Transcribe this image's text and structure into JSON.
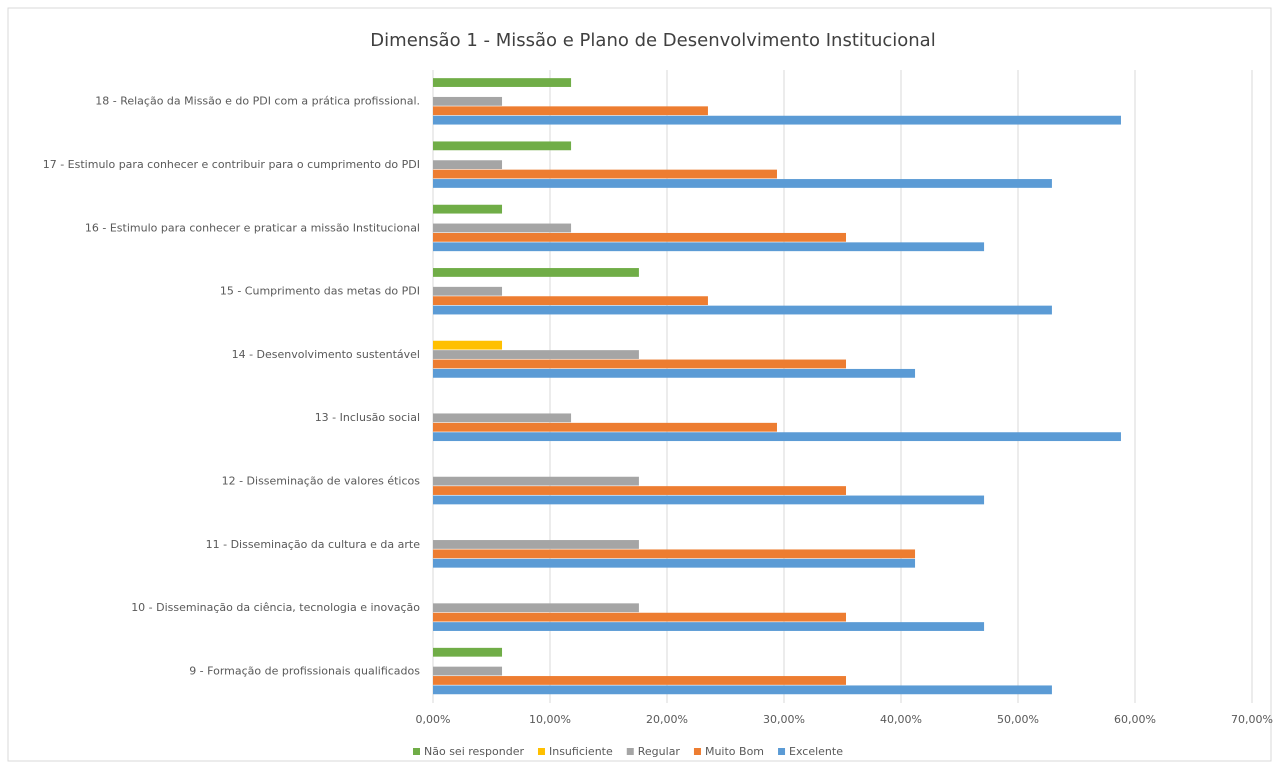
{
  "chart_data": {
    "type": "hbar",
    "title": "Dimensão 1 - Missão e Plano de Desenvolvimento Institucional",
    "categories": [
      "18 - Relação da Missão e do PDI com a prática profissional.",
      "17 - Estimulo para conhecer e contribuir para o cumprimento do PDI",
      "16 - Estimulo para conhecer e praticar a missão Institucional",
      "15 - Cumprimento das metas do PDI",
      "14 - Desenvolvimento sustentável",
      "13 - Inclusão social",
      "12 - Disseminação de valores éticos",
      "11 - Disseminação da cultura e da arte",
      "10 - Disseminação da ciência, tecnologia e inovação",
      "9 - Formação de profissionais qualificados"
    ],
    "series": [
      {
        "name": "Não sei responder",
        "color": "#70ad47",
        "values": [
          11.8,
          11.8,
          5.9,
          17.6,
          0,
          0,
          0,
          0,
          0,
          5.9
        ]
      },
      {
        "name": "Insuficiente",
        "color": "#ffc000",
        "values": [
          0,
          0,
          0,
          0,
          5.9,
          0,
          0,
          0,
          0,
          0
        ]
      },
      {
        "name": "Regular",
        "color": "#a5a5a5",
        "values": [
          5.9,
          5.9,
          11.8,
          5.9,
          17.6,
          11.8,
          17.6,
          17.6,
          17.6,
          5.9
        ]
      },
      {
        "name": "Muito Bom",
        "color": "#ed7d31",
        "values": [
          23.5,
          29.4,
          35.3,
          23.5,
          35.3,
          29.4,
          35.3,
          41.2,
          35.3,
          35.3
        ]
      },
      {
        "name": "Excelente",
        "color": "#5b9bd5",
        "values": [
          58.8,
          52.9,
          47.1,
          52.9,
          41.2,
          58.8,
          47.1,
          41.2,
          47.1,
          52.9
        ]
      }
    ],
    "xlim": [
      0,
      70
    ],
    "xticks": [
      {
        "value": 0,
        "label": "0,00%"
      },
      {
        "value": 10,
        "label": "10,00%"
      },
      {
        "value": 20,
        "label": "20,00%"
      },
      {
        "value": 30,
        "label": "30,00%"
      },
      {
        "value": 40,
        "label": "40,00%"
      },
      {
        "value": 50,
        "label": "50,00%"
      },
      {
        "value": 60,
        "label": "60,00%"
      },
      {
        "value": 70,
        "label": "70,00%"
      }
    ],
    "grid": true,
    "legend": "bottom"
  }
}
